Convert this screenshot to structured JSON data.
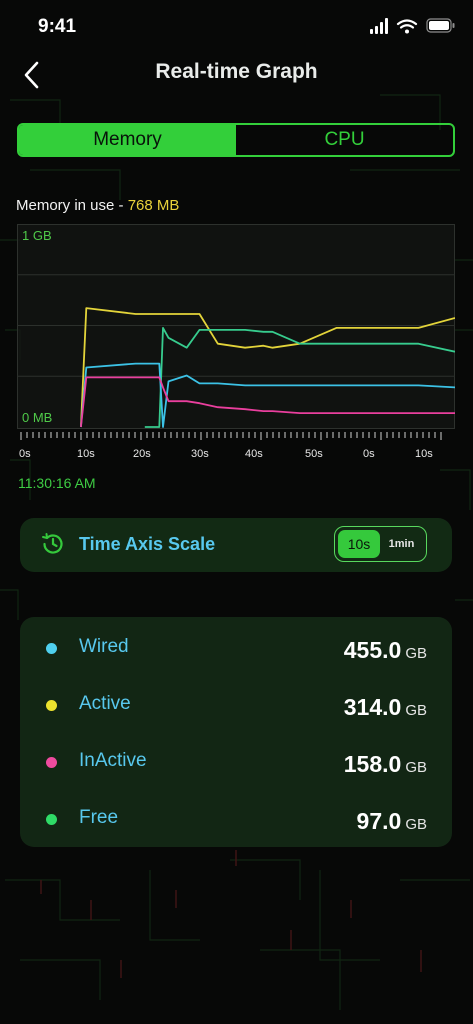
{
  "status_bar": {
    "time": "9:41"
  },
  "header": {
    "title": "Real-time Graph"
  },
  "tabs": [
    {
      "label": "Memory",
      "active": true
    },
    {
      "label": "CPU",
      "active": false
    }
  ],
  "memory_in_use": {
    "label": "Memory in use - ",
    "value": "768 MB"
  },
  "chart_data": {
    "type": "line",
    "ylim_labels": {
      "top": "1 GB",
      "bottom": "0 MB"
    },
    "ylim": [
      0,
      1024
    ],
    "x_tick_labels": [
      "0s",
      "10s",
      "20s",
      "30s",
      "40s",
      "50s",
      "0s",
      "10s"
    ],
    "x": [
      0,
      2,
      3.5,
      3.8,
      6.5,
      6.6,
      7,
      7.8,
      8,
      8.3,
      9.3,
      10,
      11,
      12.5,
      13.5,
      14,
      15.5,
      17.5,
      20,
      22,
      24
    ],
    "series": [
      {
        "color": "#e3d43a",
        "values": [
          null,
          null,
          0,
          600,
          570,
          570,
          570,
          570,
          570,
          570,
          570,
          570,
          420,
          400,
          410,
          400,
          420,
          500,
          500,
          500,
          550
        ]
      },
      {
        "color": "#37cc8e",
        "values": [
          null,
          null,
          null,
          null,
          null,
          null,
          0,
          0,
          500,
          450,
          400,
          490,
          490,
          490,
          480,
          480,
          420,
          420,
          420,
          420,
          380
        ]
      },
      {
        "color": "#3cc2e6",
        "values": [
          null,
          null,
          0,
          300,
          320,
          320,
          320,
          320,
          0,
          230,
          260,
          220,
          220,
          210,
          210,
          210,
          210,
          210,
          210,
          210,
          200
        ]
      },
      {
        "color": "#ea3f9e",
        "values": [
          null,
          null,
          0,
          250,
          250,
          250,
          250,
          250,
          200,
          130,
          130,
          120,
          100,
          90,
          80,
          80,
          70,
          70,
          70,
          70,
          70
        ]
      }
    ]
  },
  "timestamp": "11:30:16 AM",
  "time_axis": {
    "label": "Time Axis Scale",
    "icon": "clock-icon",
    "options": [
      "10s",
      "1min"
    ],
    "selected": "10s"
  },
  "stats": [
    {
      "name": "Wired",
      "value": "455.0",
      "unit": "GB",
      "color": "#4fd0ef"
    },
    {
      "name": "Active",
      "value": "314.0",
      "unit": "GB",
      "color": "#ece22e"
    },
    {
      "name": "InActive",
      "value": "158.0",
      "unit": "GB",
      "color": "#ef4b9f"
    },
    {
      "name": "Free",
      "value": "97.0",
      "unit": "GB",
      "color": "#2fdb67"
    }
  ],
  "colors": {
    "accent": "#33cf3a",
    "label_blue": "#58c8ee",
    "memory_value": "#ead33b"
  }
}
